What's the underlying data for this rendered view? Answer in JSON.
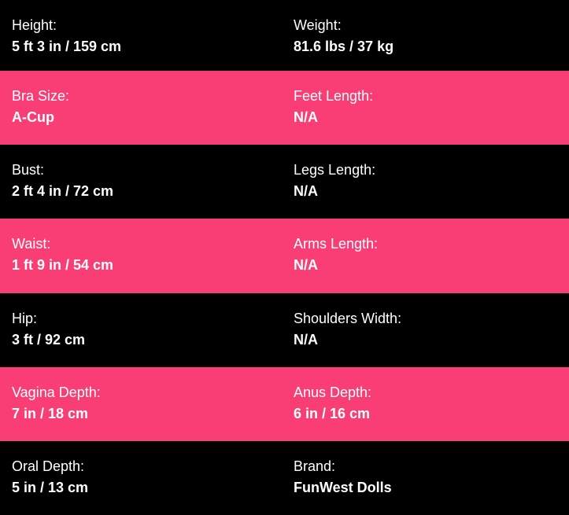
{
  "colors": {
    "pink_row": "#f93e75",
    "dark_row": "#000000",
    "text": "#ffffff"
  },
  "rows": [
    {
      "left": {
        "label": "Height:",
        "value": "5 ft 3 in / 159 cm"
      },
      "right": {
        "label": "Weight:",
        "value": "81.6 lbs / 37 kg"
      }
    },
    {
      "left": {
        "label": "Bra Size:",
        "value": "A-Cup"
      },
      "right": {
        "label": "Feet Length:",
        "value": "N/A"
      }
    },
    {
      "left": {
        "label": "Bust:",
        "value": "2 ft 4 in / 72 cm"
      },
      "right": {
        "label": "Legs Length:",
        "value": "N/A"
      }
    },
    {
      "left": {
        "label": "Waist:",
        "value": "1 ft 9 in / 54 cm"
      },
      "right": {
        "label": "Arms Length:",
        "value": "N/A"
      }
    },
    {
      "left": {
        "label": "Hip:",
        "value": "3 ft / 92 cm"
      },
      "right": {
        "label": "Shoulders Width:",
        "value": "N/A"
      }
    },
    {
      "left": {
        "label": "Vagina Depth:",
        "value": "7 in / 18 cm"
      },
      "right": {
        "label": "Anus Depth:",
        "value": "6 in / 16 cm"
      }
    },
    {
      "left": {
        "label": "Oral Depth:",
        "value": "5 in / 13 cm"
      },
      "right": {
        "label": "Brand:",
        "value": "FunWest Dolls"
      }
    }
  ]
}
